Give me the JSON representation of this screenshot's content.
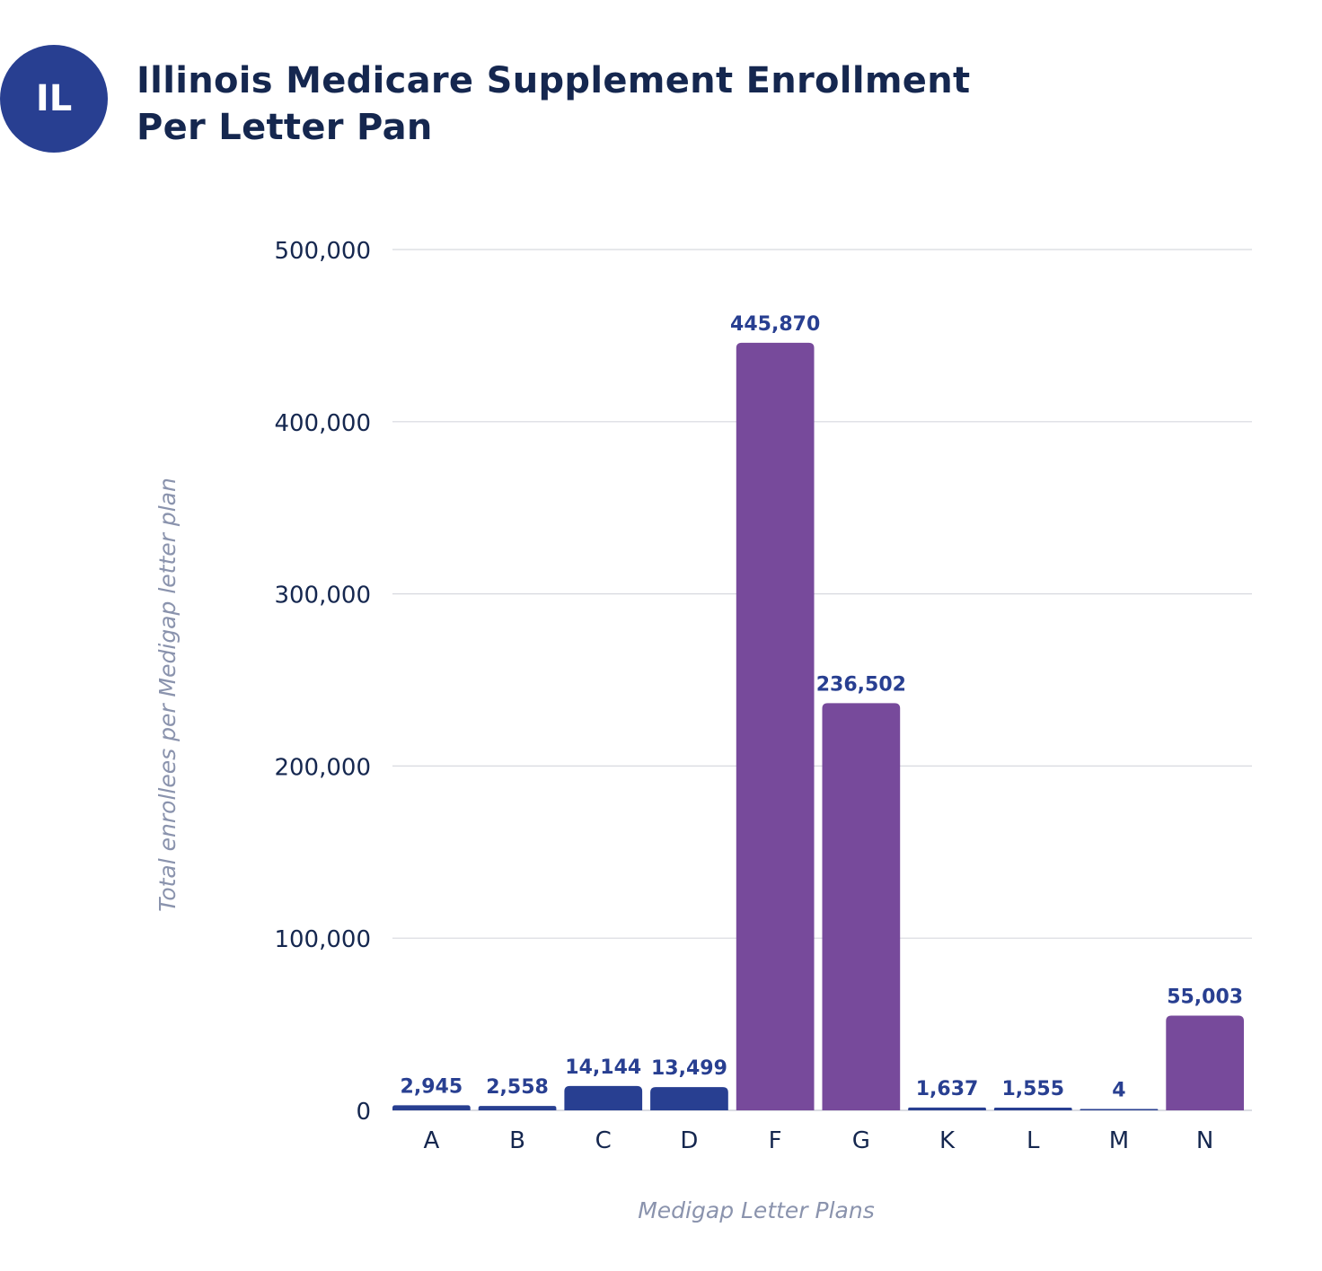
{
  "badge": "IL",
  "title_line1": "Illinois Medicare Supplement Enrollment",
  "title_line2": "Per Letter Pan",
  "colors": {
    "blue": "#283f91",
    "purple": "#774a9b",
    "title": "#15274f",
    "axis_label": "#8a93ad",
    "grid": "#d7d9df"
  },
  "chart_data": {
    "type": "bar",
    "title": "Illinois Medicare Supplement Enrollment Per Letter Pan",
    "xlabel": "Medigap Letter Plans",
    "ylabel": "Total enrollees per Medigap letter plan",
    "categories": [
      "A",
      "B",
      "C",
      "D",
      "F",
      "G",
      "K",
      "L",
      "M",
      "N"
    ],
    "values": [
      2945,
      2558,
      14144,
      13499,
      445870,
      236502,
      1637,
      1555,
      4,
      55003
    ],
    "value_labels": [
      "2,945",
      "2,558",
      "14,144",
      "13,499",
      "445,870",
      "236,502",
      "1,637",
      "1,555",
      "4",
      "55,003"
    ],
    "bar_colors": [
      "blue",
      "blue",
      "blue",
      "blue",
      "purple",
      "purple",
      "blue",
      "blue",
      "blue",
      "purple"
    ],
    "yticks": [
      0,
      100000,
      200000,
      300000,
      400000,
      500000
    ],
    "ytick_labels": [
      "0",
      "100,000",
      "200,000",
      "300,000",
      "400,000",
      "500,000"
    ],
    "ylim": [
      0,
      500000
    ],
    "grid": true
  }
}
